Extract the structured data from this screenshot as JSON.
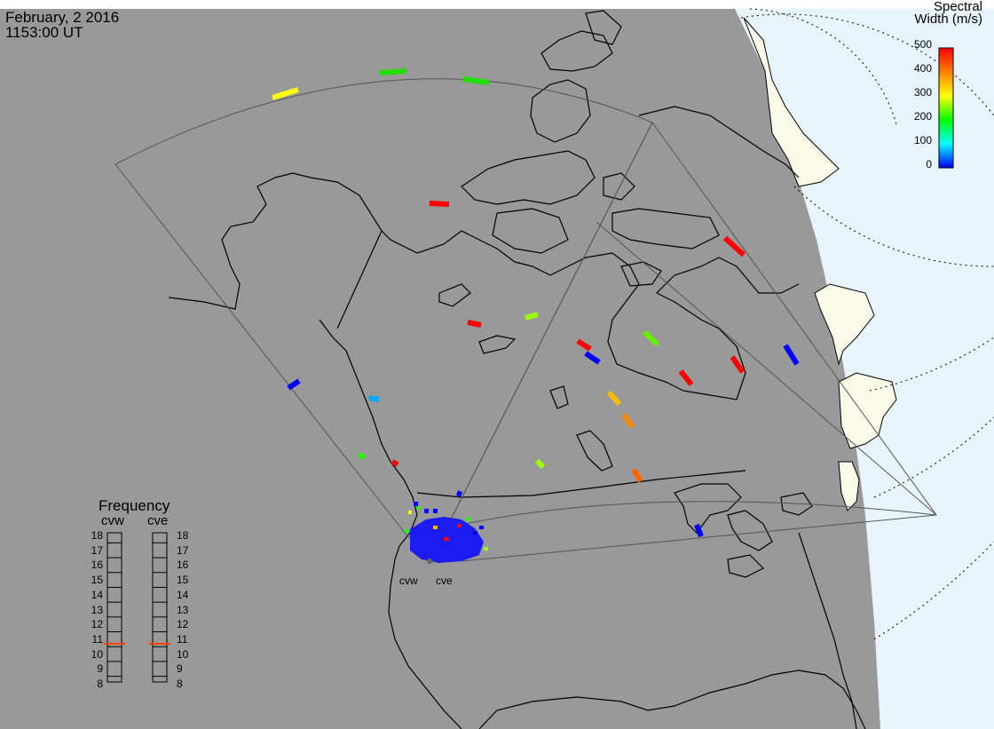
{
  "header": {
    "date": "February, 2 2016",
    "time": "1153:00 UT"
  },
  "colorbar": {
    "title_line1": "Spectral",
    "title_line2": "Width (m/s)",
    "ticks": [
      "500",
      "400",
      "300",
      "200",
      "100",
      "0"
    ],
    "gradient": [
      "#ff0000",
      "#ff8000",
      "#ffff00",
      "#00ff00",
      "#00ffff",
      "#0000ff"
    ]
  },
  "frequency_panel": {
    "title": "Frequency",
    "radars": [
      {
        "code": "cvw",
        "frequency": 10.7
      },
      {
        "code": "cve",
        "frequency": 10.7
      }
    ],
    "scale_ticks": [
      "18",
      "17",
      "16",
      "15",
      "14",
      "13",
      "12",
      "11",
      "10",
      "9",
      "8"
    ],
    "marker_color": "#ff4000"
  },
  "radar_sites": [
    {
      "code": "cvw"
    },
    {
      "code": "cve"
    }
  ],
  "colors": {
    "background_dark": "#999999",
    "daylight_ocean": "#e8f4fb",
    "daylight_land": "#fbfae9",
    "coastline": "#000000",
    "fov_outline": "#555555"
  }
}
